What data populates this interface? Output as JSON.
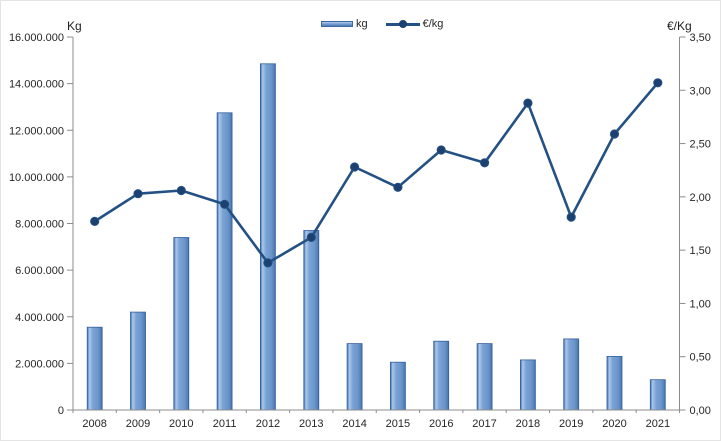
{
  "chart_data": {
    "type": "combo",
    "title": "",
    "categories": [
      "2008",
      "2009",
      "2010",
      "2011",
      "2012",
      "2013",
      "2014",
      "2015",
      "2016",
      "2017",
      "2018",
      "2019",
      "2020",
      "2021"
    ],
    "series": [
      {
        "name": "kg",
        "type": "bar",
        "axis": "left",
        "values": [
          3550000,
          4200000,
          7400000,
          12750000,
          14850000,
          7700000,
          2850000,
          2050000,
          2950000,
          2850000,
          2150000,
          3050000,
          2300000,
          1300000
        ]
      },
      {
        "name": "€/kg",
        "type": "line",
        "axis": "right",
        "values": [
          1.77,
          2.03,
          2.06,
          1.93,
          1.38,
          1.62,
          2.28,
          2.09,
          2.44,
          2.32,
          2.88,
          1.81,
          2.59,
          3.07
        ]
      }
    ],
    "left_axis": {
      "title": "Kg",
      "min": 0,
      "max": 16000000,
      "tick_step": 2000000,
      "tick_labels": [
        "16.000.000",
        "14.000.000",
        "12.000.000",
        "10.000.000",
        "8.000.000",
        "6.000.000",
        "4.000.000",
        "2.000.000",
        "0"
      ]
    },
    "right_axis": {
      "title": "€/Kg",
      "min": 0,
      "max": 3.5,
      "tick_step": 0.5,
      "tick_labels": [
        "3,50",
        "3,00",
        "2,50",
        "2,00",
        "1,50",
        "1,00",
        "0,50",
        "0,00"
      ]
    },
    "grid": false,
    "legend_position": "top-center"
  },
  "colors": {
    "bar_gradient": [
      [
        "0%",
        "#3f6ba5"
      ],
      [
        "7%",
        "#6d97cb"
      ],
      [
        "15%",
        "#abc8ea"
      ],
      [
        "38%",
        "#7ba2d4"
      ],
      [
        "72%",
        "#6b96cc"
      ],
      [
        "93%",
        "#527fb6"
      ],
      [
        "100%",
        "#3c65a0"
      ]
    ],
    "bar_border": "#36619e",
    "line": "#245184",
    "marker": "#1c406f",
    "axis": "#8c8c8c",
    "text": "#262626"
  }
}
